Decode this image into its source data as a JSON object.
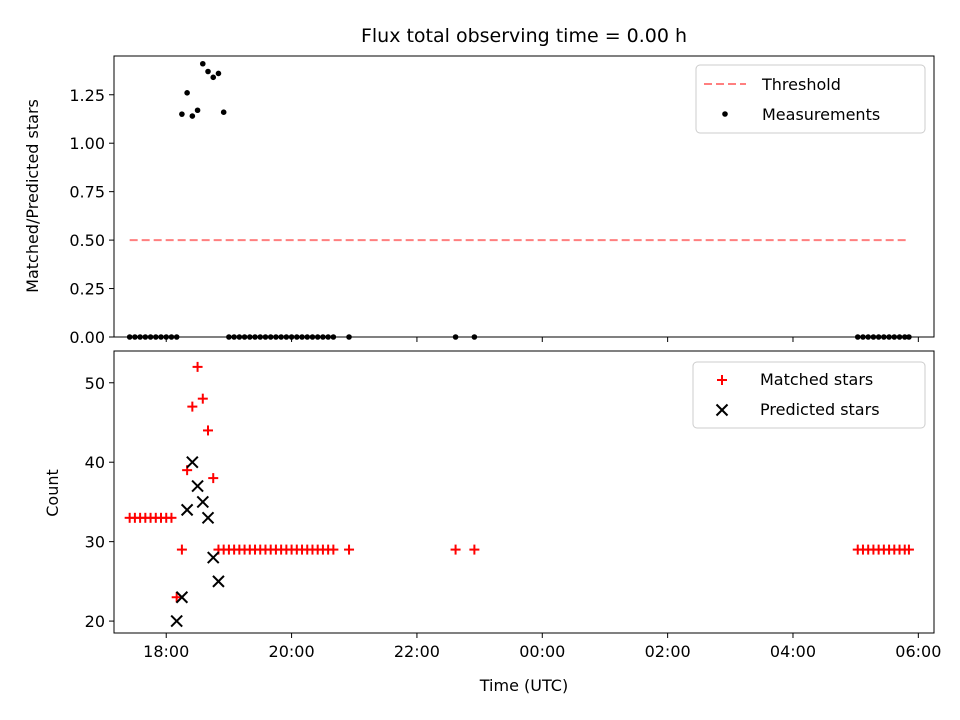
{
  "chart_data": [
    {
      "type": "scatter",
      "title": "Flux total observing time = 0.00 h",
      "xlabel": "",
      "ylabel": "Matched/Predicted stars",
      "ylim": [
        0,
        1.45
      ],
      "xlim": [
        "17:10",
        "06:15"
      ],
      "yticks": [
        0.0,
        0.25,
        0.5,
        0.75,
        1.0,
        1.25
      ],
      "ytick_labels": [
        "0.00",
        "0.25",
        "0.50",
        "0.75",
        "1.00",
        "1.25"
      ],
      "grid": false,
      "legend_position": "top-right",
      "series": [
        {
          "name": "Threshold",
          "kind": "dashed-line",
          "color": "#ff7f7f",
          "x": [
            "17:25",
            "05:51"
          ],
          "y": [
            0.5,
            0.5
          ]
        },
        {
          "name": "Measurements",
          "kind": "dots",
          "color": "#000000",
          "x": [
            "17:25",
            "17:30",
            "17:35",
            "17:40",
            "17:45",
            "17:50",
            "17:55",
            "18:00",
            "18:05",
            "18:10",
            "18:15",
            "18:20",
            "18:25",
            "18:30",
            "18:35",
            "18:40",
            "18:45",
            "18:50",
            "18:55",
            "19:00",
            "19:05",
            "19:10",
            "19:15",
            "19:20",
            "19:25",
            "19:30",
            "19:35",
            "19:40",
            "19:45",
            "19:50",
            "19:55",
            "20:00",
            "20:05",
            "20:10",
            "20:15",
            "20:20",
            "20:25",
            "20:30",
            "20:35",
            "20:40",
            "20:55",
            "22:37",
            "22:55",
            "05:02",
            "05:07",
            "05:12",
            "05:17",
            "05:22",
            "05:27",
            "05:32",
            "05:37",
            "05:42",
            "05:47",
            "05:51"
          ],
          "y": [
            0,
            0,
            0,
            0,
            0,
            0,
            0,
            0,
            0,
            0,
            1.15,
            1.26,
            1.14,
            1.17,
            1.41,
            1.37,
            1.34,
            1.36,
            1.16,
            0,
            0,
            0,
            0,
            0,
            0,
            0,
            0,
            0,
            0,
            0,
            0,
            0,
            0,
            0,
            0,
            0,
            0,
            0,
            0,
            0,
            0,
            0,
            0,
            0,
            0,
            0,
            0,
            0,
            0,
            0,
            0,
            0,
            0,
            0
          ]
        }
      ]
    },
    {
      "type": "scatter",
      "title": "",
      "xlabel": "Time (UTC)",
      "ylabel": "Count",
      "ylim": [
        18.5,
        54
      ],
      "xlim": [
        "17:10",
        "06:15"
      ],
      "yticks": [
        20,
        30,
        40,
        50
      ],
      "ytick_labels": [
        "20",
        "30",
        "40",
        "50"
      ],
      "xticks": [
        "18:00",
        "20:00",
        "22:00",
        "00:00",
        "02:00",
        "04:00",
        "06:00"
      ],
      "xtick_labels": [
        "18:00",
        "20:00",
        "22:00",
        "00:00",
        "02:00",
        "04:00",
        "06:00"
      ],
      "grid": false,
      "legend_position": "top-right",
      "series": [
        {
          "name": "Matched stars",
          "kind": "plus",
          "color": "#ff0000",
          "x": [
            "17:25",
            "17:30",
            "17:35",
            "17:40",
            "17:45",
            "17:50",
            "17:55",
            "18:00",
            "18:05",
            "18:10",
            "18:15",
            "18:20",
            "18:25",
            "18:30",
            "18:35",
            "18:40",
            "18:45",
            "18:50",
            "18:55",
            "19:00",
            "19:05",
            "19:10",
            "19:15",
            "19:20",
            "19:25",
            "19:30",
            "19:35",
            "19:40",
            "19:45",
            "19:50",
            "19:55",
            "20:00",
            "20:05",
            "20:10",
            "20:15",
            "20:20",
            "20:25",
            "20:30",
            "20:35",
            "20:40",
            "20:55",
            "22:37",
            "22:55",
            "05:02",
            "05:07",
            "05:12",
            "05:17",
            "05:22",
            "05:27",
            "05:32",
            "05:37",
            "05:42",
            "05:47",
            "05:51"
          ],
          "y": [
            33,
            33,
            33,
            33,
            33,
            33,
            33,
            33,
            33,
            23,
            29,
            39,
            47,
            52,
            48,
            44,
            38,
            29,
            29,
            29,
            29,
            29,
            29,
            29,
            29,
            29,
            29,
            29,
            29,
            29,
            29,
            29,
            29,
            29,
            29,
            29,
            29,
            29,
            29,
            29,
            29,
            29,
            29,
            29,
            29,
            29,
            29,
            29,
            29,
            29,
            29,
            29,
            29,
            29
          ]
        },
        {
          "name": "Predicted stars",
          "kind": "x",
          "color": "#000000",
          "x": [
            "18:10",
            "18:15",
            "18:20",
            "18:25",
            "18:30",
            "18:35",
            "18:40",
            "18:45",
            "18:50"
          ],
          "y": [
            20,
            23,
            34,
            40,
            37,
            35,
            33,
            28,
            25
          ]
        }
      ]
    }
  ]
}
